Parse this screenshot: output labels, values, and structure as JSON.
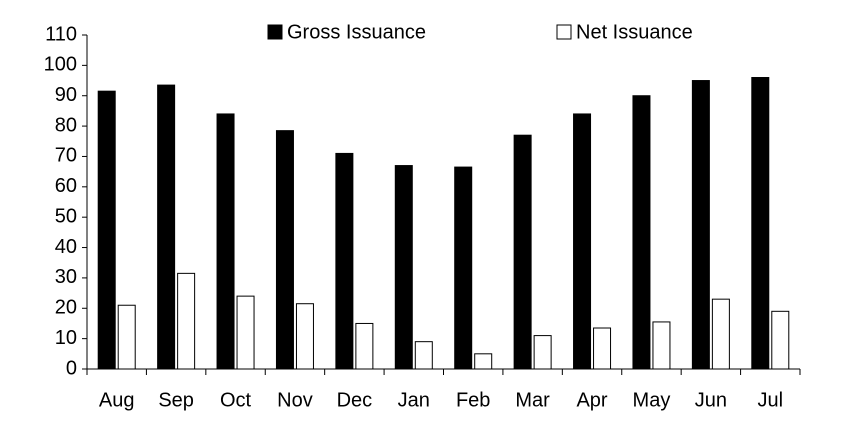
{
  "chart_data": {
    "type": "bar",
    "categories": [
      "Aug",
      "Sep",
      "Oct",
      "Nov",
      "Dec",
      "Jan",
      "Feb",
      "Mar",
      "Apr",
      "May",
      "Jun",
      "Jul"
    ],
    "series": [
      {
        "name": "Gross Issuance",
        "color": "#000000",
        "values": [
          91.5,
          93.5,
          84,
          78.5,
          71,
          67,
          66.5,
          77,
          84,
          90,
          95,
          96
        ]
      },
      {
        "name": "Net Issuance",
        "color": "#ffffff",
        "values": [
          21,
          31.5,
          24,
          21.5,
          15,
          9,
          5,
          11,
          13.5,
          15.5,
          23,
          19
        ]
      }
    ],
    "ylim": [
      0,
      110
    ],
    "yticks": [
      0,
      10,
      20,
      30,
      40,
      50,
      60,
      70,
      80,
      90,
      100,
      110
    ],
    "grid": false,
    "legend": "top"
  }
}
